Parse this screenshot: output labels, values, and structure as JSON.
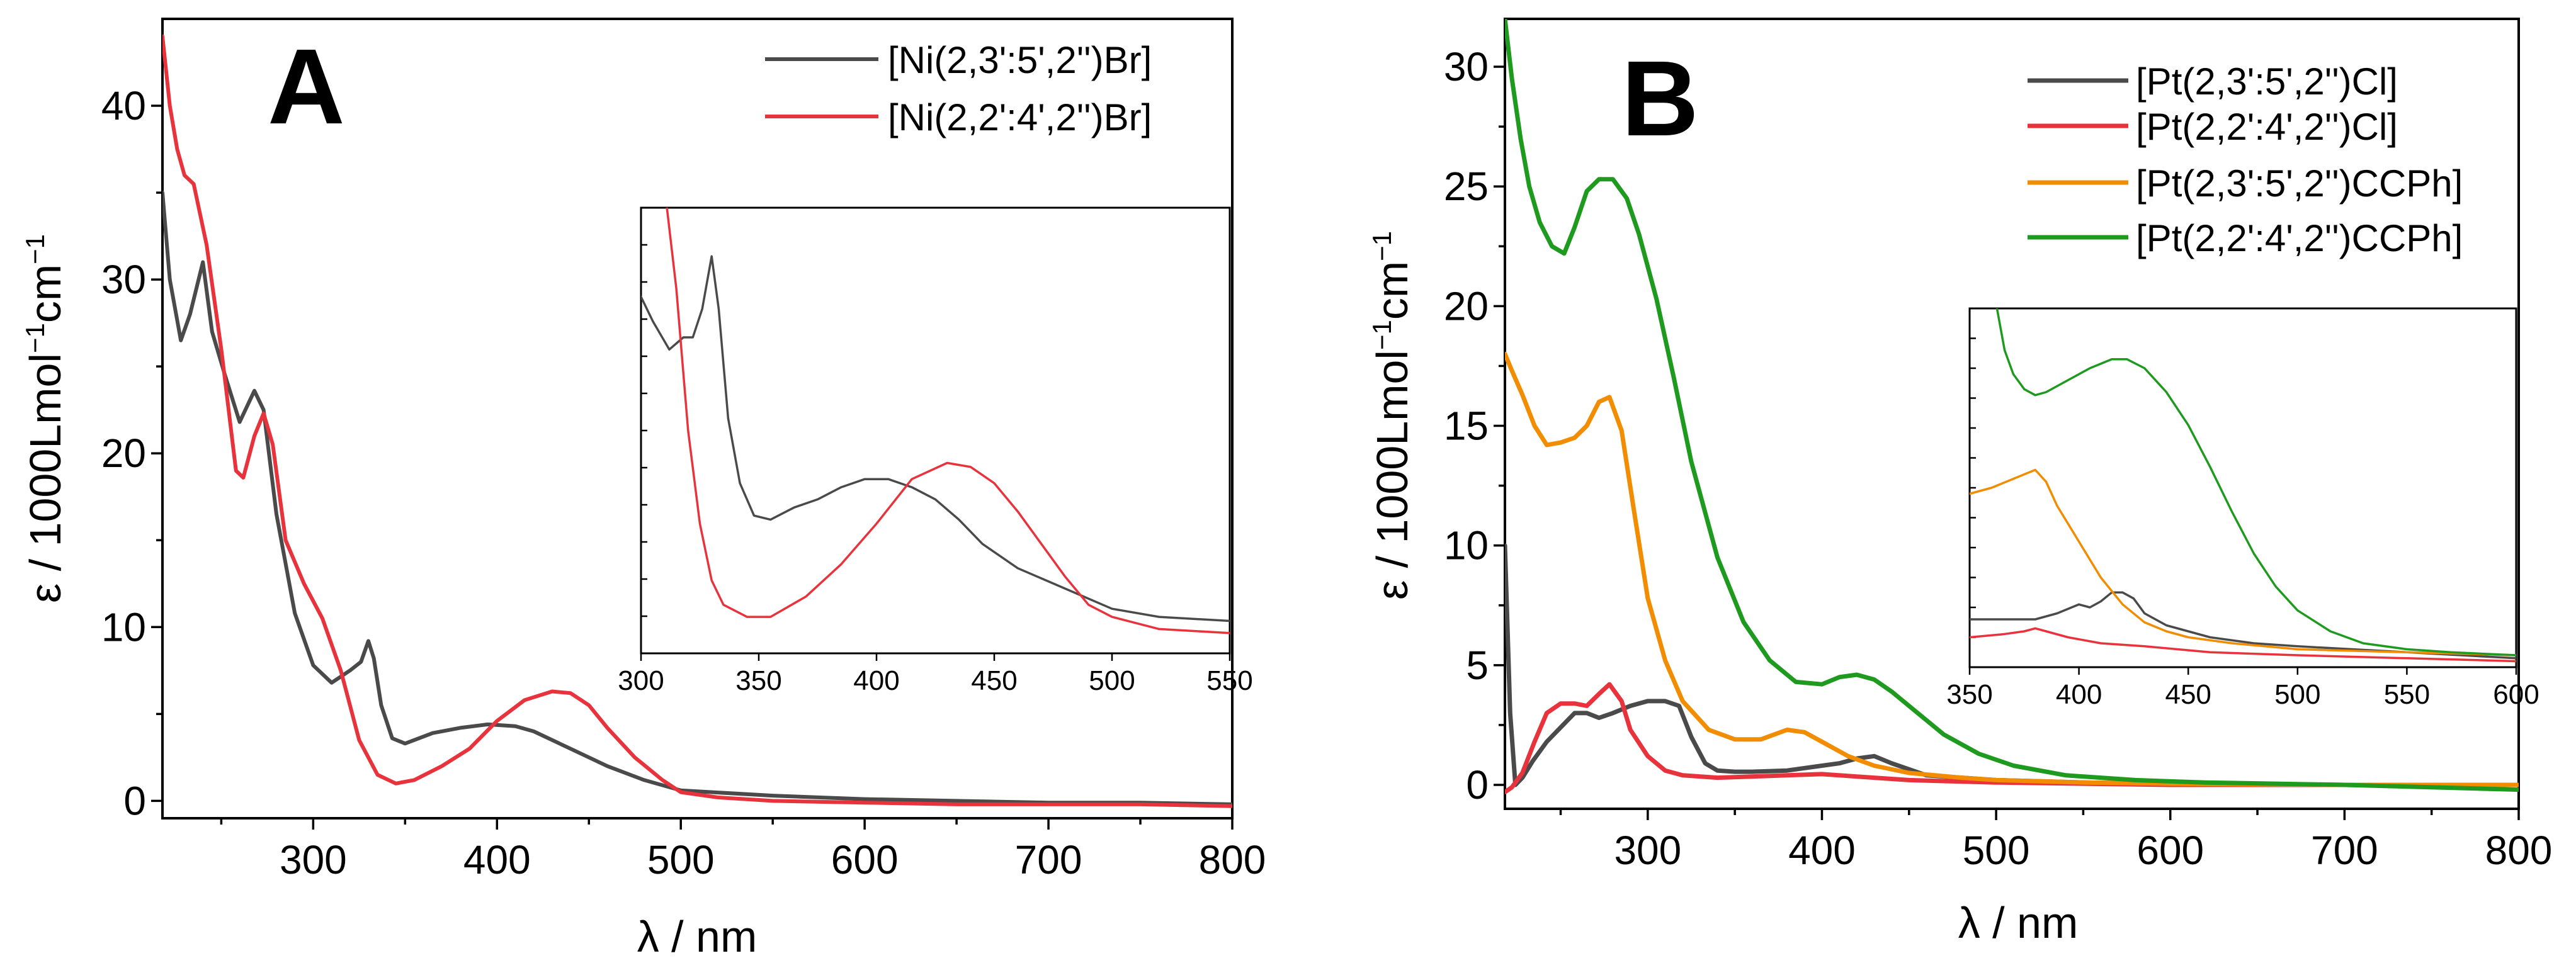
{
  "panels": {
    "A": {
      "letter": "A",
      "xlabel": "λ / nm",
      "ylabel": "ε / 1000Lmol",
      "ylabel_sup1": "−1",
      "ylabel_mid": "cm",
      "ylabel_sup2": "−1",
      "legend": [
        "[Ni(2,3':5',2'')Br]",
        "[Ni(2,2':4',2'')Br]"
      ],
      "xticks": [
        "300",
        "400",
        "500",
        "600",
        "700",
        "800"
      ],
      "yticks": [
        "0",
        "10",
        "20",
        "30",
        "40"
      ],
      "inset_xticks": [
        "300",
        "350",
        "400",
        "450",
        "500",
        "550"
      ]
    },
    "B": {
      "letter": "B",
      "xlabel": "λ / nm",
      "ylabel": "ε / 1000Lmol",
      "ylabel_sup1": "−1",
      "ylabel_mid": "cm",
      "ylabel_sup2": "−1",
      "legend": [
        "[Pt(2,3':5',2'')Cl]",
        "[Pt(2,2':4',2'')Cl]",
        "[Pt(2,3':5',2'')CCPh]",
        "[Pt(2,2':4',2'')CCPh]"
      ],
      "xticks": [
        "300",
        "400",
        "500",
        "600",
        "700",
        "800"
      ],
      "yticks": [
        "0",
        "5",
        "10",
        "15",
        "20",
        "25",
        "30"
      ],
      "inset_xticks": [
        "350",
        "400",
        "450",
        "500",
        "550",
        "600"
      ]
    }
  },
  "colors": {
    "gray": "#4a4a4a",
    "red": "#e8333c",
    "orange": "#f28c00",
    "green": "#1e9a1e"
  },
  "chart_data": [
    {
      "type": "line",
      "panel": "A",
      "xlim": [
        218,
        800
      ],
      "ylim": [
        -1,
        45
      ],
      "xlabel": "λ / nm",
      "ylabel": "ε / 1000Lmol−1cm−1",
      "legend_position": "top-right",
      "series": [
        {
          "name": "[Ni(2,3':5',2'')Br]",
          "color": "#4a4a4a",
          "x": [
            218,
            222,
            228,
            233,
            240,
            245,
            252,
            260,
            268,
            273,
            280,
            290,
            300,
            310,
            320,
            326,
            330,
            333,
            337,
            343,
            350,
            365,
            380,
            395,
            410,
            420,
            440,
            460,
            480,
            500,
            550,
            600,
            650,
            700,
            750,
            800
          ],
          "y": [
            35,
            30,
            26.5,
            28,
            31,
            27,
            24.5,
            21.8,
            23.6,
            22.5,
            16.5,
            10.8,
            7.8,
            6.8,
            7.5,
            8,
            9.2,
            8.2,
            5.5,
            3.6,
            3.3,
            3.9,
            4.2,
            4.4,
            4.3,
            4,
            3,
            2,
            1.2,
            0.6,
            0.3,
            0.1,
            0,
            -0.1,
            -0.1,
            -0.2
          ]
        },
        {
          "name": "[Ni(2,2':4',2'')Br]",
          "color": "#e8333c",
          "x": [
            218,
            222,
            226,
            230,
            235,
            242,
            250,
            258,
            262,
            268,
            273,
            278,
            285,
            295,
            305,
            315,
            325,
            335,
            345,
            355,
            370,
            385,
            400,
            415,
            430,
            440,
            450,
            460,
            475,
            490,
            500,
            520,
            550,
            600,
            650,
            700,
            750,
            800
          ],
          "y": [
            44,
            40,
            37.5,
            36,
            35.5,
            32,
            26,
            19,
            18.6,
            21,
            22.3,
            20.5,
            15,
            12.5,
            10.5,
            7.5,
            3.5,
            1.5,
            1,
            1.2,
            2,
            3,
            4.6,
            5.8,
            6.3,
            6.2,
            5.5,
            4.2,
            2.5,
            1.2,
            0.5,
            0.2,
            0,
            -0.1,
            -0.2,
            -0.2,
            -0.2,
            -0.3
          ]
        }
      ]
    },
    {
      "type": "line",
      "panel": "A-inset",
      "xlim": [
        300,
        550
      ],
      "series": [
        {
          "name": "[Ni(2,3':5',2'')Br]",
          "color": "#4a4a4a",
          "x": [
            300,
            305,
            312,
            318,
            322,
            326,
            330,
            333,
            337,
            342,
            348,
            355,
            365,
            375,
            385,
            395,
            405,
            415,
            425,
            435,
            445,
            460,
            480,
            500,
            520,
            550
          ],
          "y": [
            0.88,
            0.82,
            0.75,
            0.78,
            0.78,
            0.85,
            0.98,
            0.85,
            0.58,
            0.42,
            0.34,
            0.33,
            0.36,
            0.38,
            0.41,
            0.43,
            0.43,
            0.41,
            0.38,
            0.33,
            0.27,
            0.21,
            0.16,
            0.11,
            0.09,
            0.08
          ]
        },
        {
          "name": "[Ni(2,2':4',2'')Br]",
          "color": "#e8333c",
          "x": [
            310,
            315,
            320,
            325,
            330,
            335,
            345,
            355,
            370,
            385,
            400,
            415,
            430,
            440,
            450,
            460,
            470,
            480,
            490,
            500,
            520,
            550
          ],
          "y": [
            1.15,
            0.9,
            0.55,
            0.32,
            0.18,
            0.12,
            0.09,
            0.09,
            0.14,
            0.22,
            0.32,
            0.43,
            0.47,
            0.46,
            0.42,
            0.35,
            0.27,
            0.19,
            0.12,
            0.09,
            0.06,
            0.05
          ]
        }
      ]
    },
    {
      "type": "line",
      "panel": "B",
      "xlim": [
        218,
        800
      ],
      "ylim": [
        -1,
        32
      ],
      "xlabel": "λ / nm",
      "ylabel": "ε / 1000Lmol−1cm−1",
      "legend_position": "top-right",
      "series": [
        {
          "name": "[Pt(2,3':5',2'')Cl]",
          "color": "#4a4a4a",
          "x": [
            218,
            221,
            224,
            228,
            234,
            242,
            250,
            258,
            265,
            272,
            280,
            290,
            300,
            310,
            318,
            325,
            333,
            340,
            350,
            360,
            380,
            400,
            410,
            420,
            430,
            440,
            460,
            500,
            550,
            600,
            700,
            800
          ],
          "y": [
            10,
            3,
            0,
            0.3,
            1,
            1.8,
            2.4,
            3,
            3,
            2.8,
            3,
            3.3,
            3.5,
            3.5,
            3.3,
            2,
            0.9,
            0.6,
            0.55,
            0.55,
            0.6,
            0.8,
            0.9,
            1.1,
            1.2,
            0.9,
            0.4,
            0.2,
            0.1,
            0.05,
            0,
            0
          ]
        },
        {
          "name": "[Pt(2,2':4',2'')Cl]",
          "color": "#e8333c",
          "x": [
            218,
            222,
            228,
            235,
            242,
            250,
            258,
            265,
            272,
            278,
            285,
            290,
            300,
            310,
            320,
            340,
            360,
            380,
            400,
            420,
            450,
            500,
            600,
            700,
            800
          ],
          "y": [
            -0.3,
            -0.1,
            0.5,
            1.8,
            3,
            3.4,
            3.4,
            3.3,
            3.8,
            4.2,
            3.5,
            2.3,
            1.2,
            0.6,
            0.4,
            0.3,
            0.35,
            0.4,
            0.45,
            0.35,
            0.2,
            0.1,
            0,
            0,
            0
          ]
        },
        {
          "name": "[Pt(2,3':5',2'')CCPh]",
          "color": "#f28c00",
          "x": [
            218,
            222,
            228,
            235,
            242,
            250,
            258,
            265,
            272,
            278,
            285,
            292,
            300,
            310,
            320,
            335,
            350,
            365,
            380,
            390,
            400,
            415,
            430,
            450,
            480,
            500,
            550,
            600,
            700,
            800
          ],
          "y": [
            18,
            17.3,
            16.3,
            15,
            14.2,
            14.3,
            14.5,
            15,
            16,
            16.2,
            14.8,
            11.5,
            7.8,
            5.2,
            3.5,
            2.3,
            1.9,
            1.9,
            2.3,
            2.2,
            1.8,
            1.2,
            0.8,
            0.5,
            0.3,
            0.2,
            0.1,
            0.05,
            0,
            0
          ]
        },
        {
          "name": "[Pt(2,2':4',2'')CCPh]",
          "color": "#1e9a1e",
          "x": [
            218,
            222,
            227,
            232,
            238,
            245,
            252,
            258,
            265,
            272,
            280,
            288,
            295,
            305,
            315,
            325,
            340,
            355,
            370,
            385,
            400,
            410,
            420,
            430,
            440,
            455,
            470,
            490,
            510,
            540,
            580,
            620,
            700,
            800
          ],
          "y": [
            32,
            29.5,
            27,
            25,
            23.5,
            22.5,
            22.2,
            23.3,
            24.8,
            25.3,
            25.3,
            24.5,
            23,
            20.3,
            17,
            13.5,
            9.5,
            6.8,
            5.2,
            4.3,
            4.2,
            4.5,
            4.6,
            4.4,
            3.9,
            3,
            2.1,
            1.3,
            0.8,
            0.4,
            0.2,
            0.1,
            0,
            -0.2
          ]
        }
      ]
    },
    {
      "type": "line",
      "panel": "B-inset",
      "xlim": [
        350,
        600
      ],
      "series": [
        {
          "name": "[Pt(2,3':5',2'')Cl]",
          "color": "#4a4a4a",
          "x": [
            350,
            360,
            370,
            380,
            390,
            400,
            405,
            410,
            415,
            420,
            425,
            430,
            440,
            460,
            480,
            500,
            550,
            600
          ],
          "y": [
            0.16,
            0.16,
            0.16,
            0.16,
            0.18,
            0.21,
            0.2,
            0.22,
            0.25,
            0.25,
            0.23,
            0.18,
            0.14,
            0.1,
            0.08,
            0.07,
            0.05,
            0.03
          ]
        },
        {
          "name": "[Pt(2,2':4',2'')Cl]",
          "color": "#e8333c",
          "x": [
            350,
            365,
            375,
            380,
            385,
            395,
            410,
            430,
            460,
            500,
            550,
            600
          ],
          "y": [
            0.1,
            0.11,
            0.12,
            0.13,
            0.12,
            0.1,
            0.08,
            0.07,
            0.05,
            0.04,
            0.03,
            0.02
          ]
        },
        {
          "name": "[Pt(2,3':5',2'')CCPh]",
          "color": "#f28c00",
          "x": [
            350,
            360,
            370,
            380,
            385,
            390,
            400,
            410,
            420,
            430,
            440,
            450,
            470,
            500,
            550,
            600
          ],
          "y": [
            0.58,
            0.6,
            0.63,
            0.66,
            0.62,
            0.54,
            0.42,
            0.3,
            0.21,
            0.15,
            0.12,
            0.1,
            0.08,
            0.06,
            0.05,
            0.04
          ]
        },
        {
          "name": "[Pt(2,2':4',2'')CCPh]",
          "color": "#1e9a1e",
          "x": [
            362,
            366,
            370,
            375,
            380,
            385,
            395,
            405,
            415,
            422,
            430,
            440,
            450,
            460,
            470,
            480,
            490,
            500,
            515,
            530,
            550,
            570,
            600
          ],
          "y": [
            1.22,
            1.06,
            0.98,
            0.93,
            0.91,
            0.92,
            0.96,
            1.0,
            1.03,
            1.03,
            1.0,
            0.92,
            0.81,
            0.67,
            0.52,
            0.38,
            0.27,
            0.19,
            0.12,
            0.08,
            0.06,
            0.05,
            0.04
          ]
        }
      ]
    }
  ]
}
